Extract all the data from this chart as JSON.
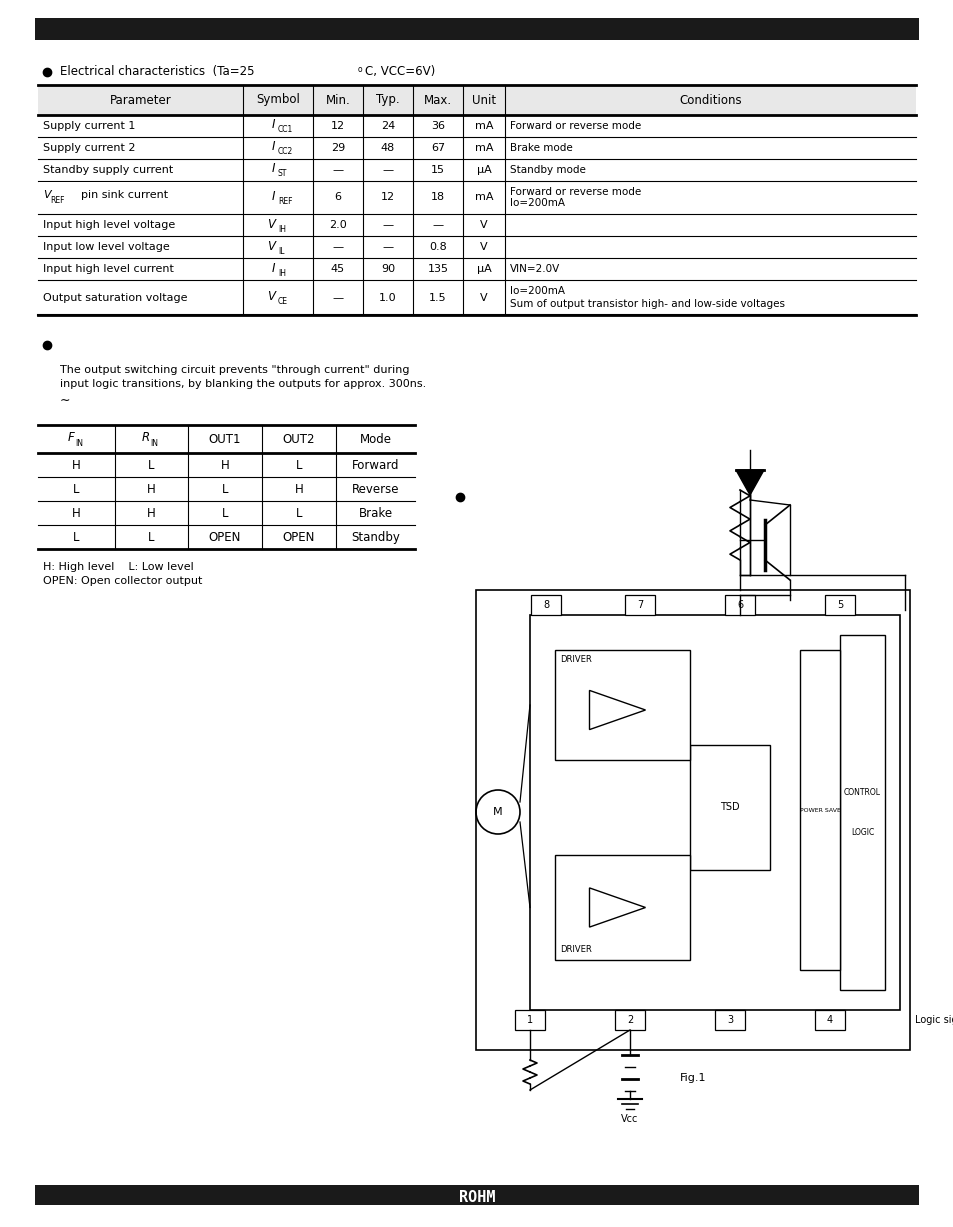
{
  "page_bg": "#ffffff",
  "spec_table": {
    "header": [
      "Parameter",
      "Symbol",
      "Min.",
      "Typ.",
      "Max.",
      "Unit",
      "Conditions"
    ],
    "rows": [
      [
        "Supply current 1",
        "I",
        "CC1",
        "12",
        "24",
        "36",
        "mA",
        "Forward or reverse mode"
      ],
      [
        "Supply current 2",
        "I",
        "CC2",
        "29",
        "48",
        "67",
        "mA",
        "Brake mode"
      ],
      [
        "Standby supply current",
        "I",
        "ST",
        "—",
        "—",
        "15",
        "μA",
        "Standby mode"
      ],
      [
        "VREF  pin sink current",
        "I",
        "REF",
        "6",
        "12",
        "18",
        "mA",
        "Forward or reverse mode\nIo=200mA"
      ],
      [
        "Input high level voltage",
        "V",
        "IH",
        "2.0",
        "—",
        "—",
        "V",
        ""
      ],
      [
        "Input low level voltage",
        "V",
        "IL",
        "—",
        "—",
        "0.8",
        "V",
        ""
      ],
      [
        "Input high level current",
        "I",
        "IH",
        "45",
        "90",
        "135",
        "μA",
        "VIN=2.0V"
      ],
      [
        "Output saturation voltage",
        "V",
        "CE",
        "—",
        "1.0",
        "1.5",
        "V",
        "Io=200mA\nSum of output transistor high- and low-side voltages"
      ]
    ],
    "row_heights": [
      1.0,
      1.0,
      1.0,
      1.5,
      1.0,
      1.0,
      1.0,
      1.6
    ]
  },
  "truth_table": {
    "header_main": [
      "F",
      "R",
      "OUT1",
      "OUT2",
      "Mode"
    ],
    "header_sub": [
      "IN",
      "IN",
      "",
      "",
      ""
    ],
    "rows": [
      [
        "H",
        "L",
        "H",
        "L",
        "Forward"
      ],
      [
        "L",
        "H",
        "L",
        "H",
        "Reverse"
      ],
      [
        "H",
        "H",
        "L",
        "L",
        "Brake"
      ],
      [
        "L",
        "L",
        "OPEN",
        "OPEN",
        "Standby"
      ]
    ]
  },
  "fig_caption": "Fig.1",
  "logic_signals_label": "Logic signals",
  "vcc_label": "Vcc"
}
